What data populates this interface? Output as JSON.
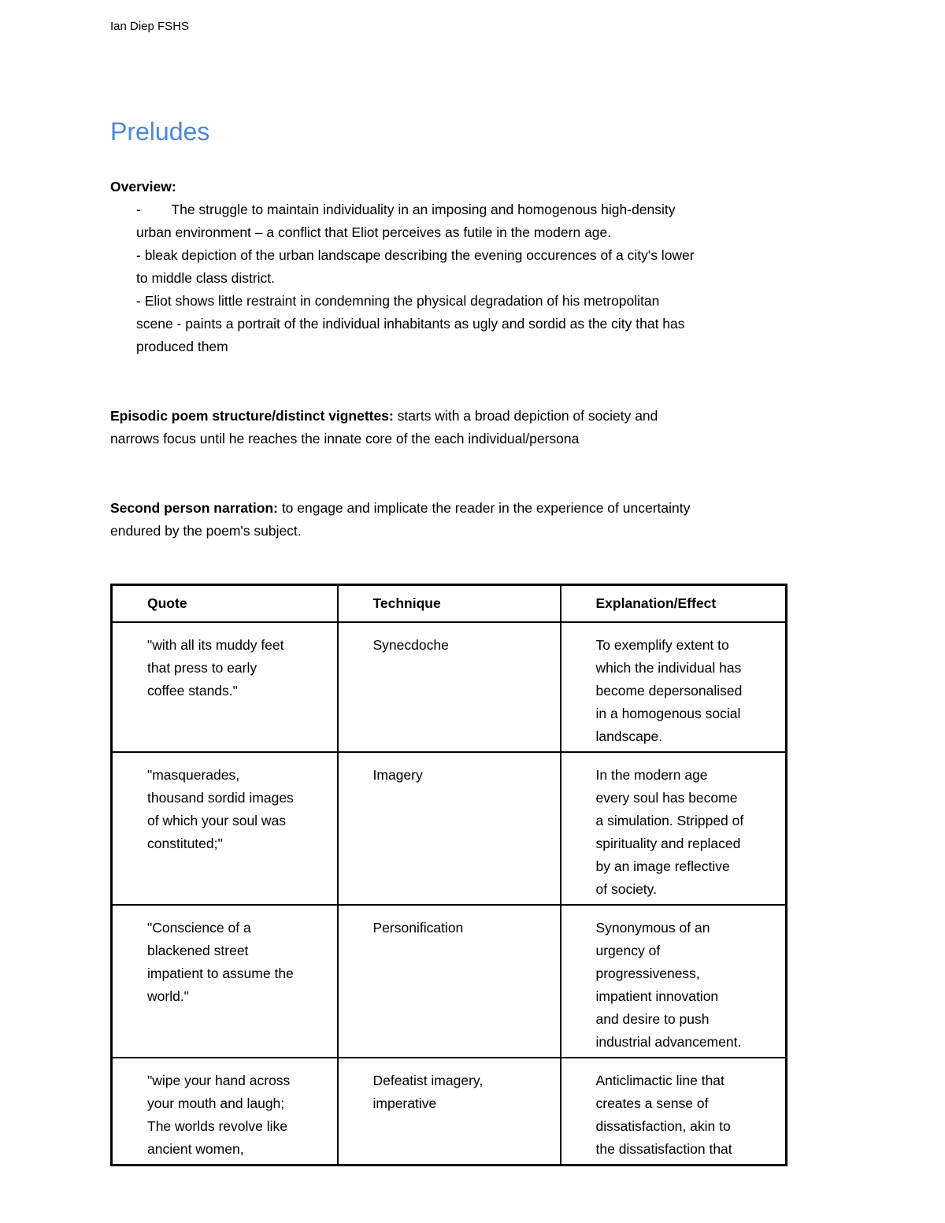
{
  "page": {
    "author_header": "Ian Diep FSHS",
    "title": "Preludes"
  },
  "colors": {
    "title_blue": "#4a86e8",
    "text": "#000000",
    "background": "#ffffff",
    "table_border": "#000000"
  },
  "overview": {
    "heading": "Overview:",
    "bullet_first": "-        The struggle to maintain individuality in an imposing and homogenous high-density\nurban environment – a conflict that Eliot perceives as futile in the modern age.",
    "para2": "- bleak depiction of the urban landscape describing the evening occurences of a city's lower\nto middle class district.",
    "para3": "- Eliot shows little restraint in condemning the physical degradation of his metropolitan\nscene - paints a portrait of the individual inhabitants as ugly and sordid as the city that has\nproduced them"
  },
  "paragraphs": [
    {
      "lead": "Episodic poem structure/distinct vignettes:",
      "rest": " starts with a broad depiction of society and\nnarrows focus until he reaches the innate core of the each individual/persona"
    },
    {
      "lead": "Second person narration:",
      "rest": " to engage and implicate the reader in the experience of uncertainty\nendured by the poem's subject."
    }
  ],
  "table": {
    "headers": [
      "Quote",
      "Technique",
      "Explanation/Effect"
    ],
    "rows": [
      {
        "quote": "\"with all its muddy feet\nthat press to early\ncoffee stands.\"",
        "technique": "Synecdoche",
        "explanation": "To exemplify extent to\nwhich the individual has\nbecome depersonalised\nin a homogenous social\nlandscape."
      },
      {
        "quote": "\"masquerades,\nthousand sordid images\nof which your soul was\nconstituted;\"",
        "technique": "Imagery",
        "explanation": "In the modern age\nevery soul has become\na simulation. Stripped of\nspirituality and replaced\nby an image reflective\nof society."
      },
      {
        "quote": "\"Conscience of a\nblackened street\nimpatient to assume the\nworld.\"",
        "technique": "Personification",
        "explanation": "Synonymous of an\nurgency of\nprogressiveness,\nimpatient innovation\nand desire to push\nindustrial advancement."
      },
      {
        "quote": "\"wipe your hand across\nyour mouth and laugh;\nThe worlds revolve like\nancient women,",
        "technique": "Defeatist imagery,\nimperative",
        "explanation": "Anticlimactic line that\ncreates a sense of\ndissatisfaction, akin to\nthe dissatisfaction that"
      }
    ]
  }
}
